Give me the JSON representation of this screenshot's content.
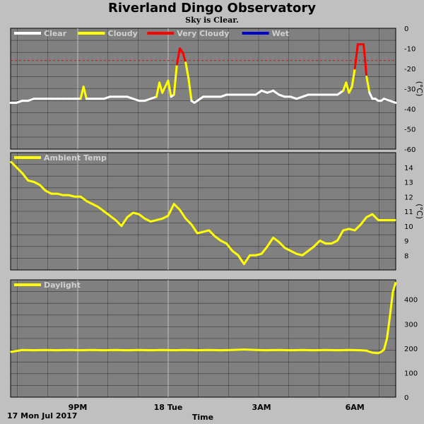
{
  "title": "Riverland Dingo Observatory",
  "subtitle": "Sky is Clear.",
  "chart_data": [
    {
      "type": "line",
      "panel": "sky",
      "ylabel": "(°C)",
      "ylim": [
        -60,
        0
      ],
      "yticks": [
        "0",
        "-10",
        "-20",
        "-30",
        "-40",
        "-50",
        "-60"
      ],
      "threshold": -16,
      "legend": [
        {
          "name": "Clear",
          "color": "#ffffff"
        },
        {
          "name": "Cloudy",
          "color": "#ffff00"
        },
        {
          "name": "Very Cloudy",
          "color": "#ff0000"
        },
        {
          "name": "Wet",
          "color": "#0000cc"
        }
      ],
      "x": [
        0,
        0.1,
        0.2,
        0.3,
        0.4,
        0.5,
        0.6,
        0.7,
        0.8,
        0.9,
        1.0,
        1.1,
        1.2,
        1.25,
        1.3,
        1.4,
        1.5,
        1.6,
        1.7,
        1.8,
        1.9,
        2.0,
        2.1,
        2.2,
        2.3,
        2.4,
        2.5,
        2.55,
        2.6,
        2.7,
        2.75,
        2.8,
        2.85,
        2.9,
        2.95,
        3.0,
        3.05,
        3.1,
        3.15,
        3.2,
        3.25,
        3.3,
        3.4,
        3.5,
        3.6,
        3.7,
        3.8,
        3.9,
        4.0,
        4.1,
        4.2,
        4.3,
        4.4,
        4.5,
        4.6,
        4.7,
        4.8,
        4.9,
        5.0,
        5.1,
        5.2,
        5.3,
        5.4,
        5.5,
        5.6,
        5.7,
        5.75,
        5.8,
        5.85,
        5.9,
        5.95,
        6.0,
        6.05,
        6.1,
        6.15,
        6.2,
        6.25,
        6.3,
        6.35,
        6.4,
        6.5,
        6.6
      ],
      "values": [
        -37,
        -37,
        -36,
        -36,
        -35,
        -35,
        -35,
        -35,
        -35,
        -35,
        -35,
        -35,
        -35,
        -29,
        -35,
        -35,
        -35,
        -35,
        -34,
        -34,
        -34,
        -34,
        -35,
        -36,
        -36,
        -35,
        -34,
        -27,
        -32,
        -26,
        -34,
        -33,
        -18,
        -10,
        -12,
        -17,
        -25,
        -36,
        -37,
        -36,
        -35,
        -34,
        -34,
        -34,
        -34,
        -33,
        -33,
        -33,
        -33,
        -33,
        -33,
        -31,
        -32,
        -31,
        -33,
        -34,
        -34,
        -35,
        -34,
        -33,
        -33,
        -33,
        -33,
        -33,
        -33,
        -31,
        -27,
        -32,
        -29,
        -20,
        -8,
        -8,
        -8,
        -24,
        -32,
        -35,
        -35,
        -36,
        -36,
        -35,
        -36,
        -37
      ]
    },
    {
      "type": "line",
      "panel": "ambient",
      "ylabel": "(°C)",
      "ylim": [
        7,
        15
      ],
      "yticks": [
        "14",
        "13",
        "12",
        "11",
        "10",
        "9",
        "8"
      ],
      "legend": [
        {
          "name": "Ambient Temp",
          "color": "#ffff00"
        }
      ],
      "x": [
        0,
        0.1,
        0.2,
        0.3,
        0.4,
        0.5,
        0.6,
        0.7,
        0.8,
        0.9,
        1.0,
        1.1,
        1.2,
        1.3,
        1.4,
        1.5,
        1.6,
        1.7,
        1.8,
        1.9,
        2.0,
        2.1,
        2.2,
        2.3,
        2.4,
        2.5,
        2.6,
        2.7,
        2.8,
        2.9,
        3.0,
        3.1,
        3.2,
        3.3,
        3.4,
        3.5,
        3.6,
        3.7,
        3.8,
        3.9,
        4.0,
        4.1,
        4.2,
        4.3,
        4.4,
        4.5,
        4.6,
        4.7,
        4.8,
        4.9,
        5.0,
        5.1,
        5.2,
        5.3,
        5.4,
        5.5,
        5.6,
        5.7,
        5.8,
        5.9,
        6.0,
        6.1,
        6.2,
        6.3,
        6.4,
        6.5,
        6.6
      ],
      "values": [
        14.4,
        14.0,
        13.6,
        13.1,
        13.0,
        12.8,
        12.4,
        12.2,
        12.2,
        12.1,
        12.1,
        12.0,
        12.0,
        11.7,
        11.5,
        11.3,
        11.0,
        10.7,
        10.4,
        10.0,
        10.6,
        10.9,
        10.8,
        10.5,
        10.3,
        10.4,
        10.5,
        10.7,
        11.5,
        11.1,
        10.5,
        10.1,
        9.5,
        9.6,
        9.7,
        9.3,
        9.0,
        8.8,
        8.3,
        8.0,
        7.4,
        8.0,
        8.0,
        8.1,
        8.6,
        9.2,
        8.9,
        8.5,
        8.3,
        8.1,
        8.0,
        8.3,
        8.6,
        9.0,
        8.8,
        8.8,
        9.0,
        9.7,
        9.8,
        9.7,
        10.1,
        10.6,
        10.8,
        10.4,
        10.4,
        10.4,
        10.4
      ]
    },
    {
      "type": "line",
      "panel": "daylight",
      "ylim": [
        0,
        480
      ],
      "yticks": [
        "400",
        "300",
        "200",
        "100",
        "0"
      ],
      "legend": [
        {
          "name": "Daylight",
          "color": "#ffff00"
        }
      ],
      "x": [
        0,
        0.2,
        0.4,
        0.6,
        0.8,
        1.0,
        1.2,
        1.4,
        1.6,
        1.8,
        2.0,
        2.2,
        2.4,
        2.6,
        2.8,
        3.0,
        3.2,
        3.4,
        3.6,
        3.8,
        4.0,
        4.2,
        4.4,
        4.6,
        4.8,
        5.0,
        5.2,
        5.4,
        5.6,
        5.8,
        6.0,
        6.1,
        6.2,
        6.3,
        6.35,
        6.4,
        6.45,
        6.5,
        6.55,
        6.6
      ],
      "values": [
        185,
        193,
        192,
        193,
        192,
        193,
        192,
        193,
        192,
        193,
        192,
        193,
        192,
        193,
        192,
        193,
        192,
        193,
        192,
        193,
        195,
        193,
        192,
        193,
        192,
        193,
        192,
        193,
        192,
        193,
        192,
        190,
        182,
        180,
        185,
        195,
        240,
        330,
        430,
        470
      ]
    }
  ],
  "x_axis": {
    "label": "Time",
    "start_label": "17 Mon Jul 2017",
    "ticks": [
      "9PM",
      "18 Tue",
      "3AM",
      "6AM"
    ],
    "range": [
      0,
      6.6
    ],
    "tick_x": [
      1.15,
      2.7,
      4.3,
      5.9
    ]
  }
}
